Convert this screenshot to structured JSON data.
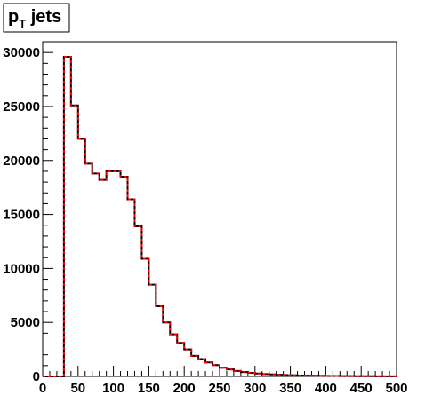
{
  "chart_data": {
    "type": "histogram",
    "title_main": "p",
    "title_sub": "T",
    "title_rest": " jets",
    "xlim": [
      0,
      500
    ],
    "ylim": [
      0,
      31000
    ],
    "x_ticks": [
      "0",
      "50",
      "100",
      "150",
      "200",
      "250",
      "300",
      "350",
      "400",
      "450",
      "500"
    ],
    "y_ticks": [
      "0",
      "5000",
      "10000",
      "15000",
      "20000",
      "25000",
      "30000"
    ],
    "grid": false,
    "bin_width": 10,
    "bin_edges_start": 0,
    "series": [
      {
        "style": "solid",
        "color": "#000000",
        "values": [
          0,
          0,
          0,
          29600,
          25100,
          22000,
          19700,
          18800,
          18200,
          19000,
          19000,
          18500,
          16400,
          13900,
          10900,
          8500,
          6500,
          5000,
          3900,
          3100,
          2500,
          1900,
          1600,
          1300,
          1050,
          800,
          650,
          500,
          400,
          330,
          270,
          220,
          180,
          150,
          120,
          100,
          85,
          75,
          65,
          55,
          45,
          40,
          35,
          30,
          25,
          20,
          18,
          15,
          12,
          10
        ]
      },
      {
        "style": "dashed",
        "color": "#ff0000",
        "values": [
          0,
          0,
          0,
          29600,
          25100,
          22000,
          19700,
          18800,
          18200,
          19000,
          19000,
          18500,
          16400,
          13900,
          10900,
          8500,
          6500,
          5000,
          3900,
          3100,
          2500,
          1900,
          1600,
          1300,
          1050,
          800,
          650,
          500,
          400,
          330,
          270,
          220,
          180,
          150,
          120,
          100,
          85,
          75,
          65,
          55,
          45,
          40,
          35,
          30,
          25,
          20,
          18,
          15,
          12,
          10
        ]
      }
    ]
  }
}
